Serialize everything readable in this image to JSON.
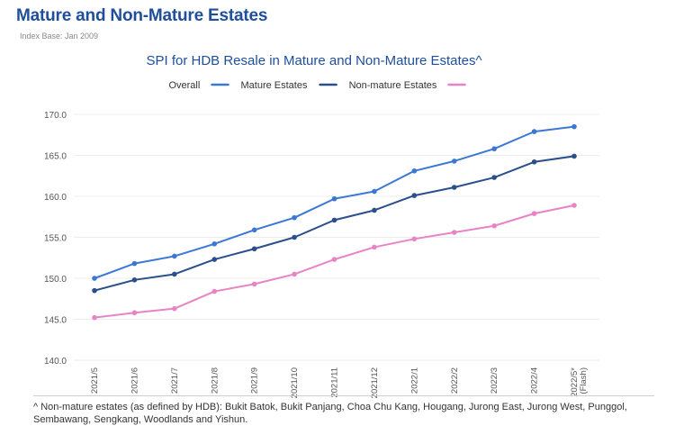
{
  "header": {
    "title": "Mature and Non-Mature Estates",
    "index_base": "Index Base: Jan 2009"
  },
  "footnote": "^ Non-mature estates (as defined by HDB): Bukit Batok, Bukit Panjang, Choa Chu Kang, Hougang, Jurong East, Jurong West, Punggol, Sembawang, Sengkang, Woodlands and Yishun.",
  "colors": {
    "overall": "#3a78d4",
    "mature": "#2b4f8c",
    "non_mature": "#e884c6",
    "grid": "#ececec",
    "title": "#1f4e9b"
  },
  "chart_data": {
    "type": "line",
    "title": "SPI for HDB Resale in Mature and Non-Mature Estates^",
    "xlabel": "",
    "ylabel": "",
    "ylim": [
      140,
      170
    ],
    "yticks": [
      "140.0",
      "145.0",
      "150.0",
      "155.0",
      "160.0",
      "165.0",
      "170.0"
    ],
    "grid": true,
    "legend_position": "top",
    "categories": [
      "2021/5",
      "2021/6",
      "2021/7",
      "2021/8",
      "2021/9",
      "2021/10",
      "2021/11",
      "2021/12",
      "2022/1",
      "2022/2",
      "2022/3",
      "2022/4",
      "2022/5*"
    ],
    "last_category_note": "(Flash)",
    "series": [
      {
        "name": "Overall",
        "color_key": "overall",
        "values": [
          150.0,
          151.8,
          152.7,
          154.2,
          155.9,
          157.4,
          159.7,
          160.6,
          163.1,
          164.3,
          165.8,
          167.9,
          168.5
        ]
      },
      {
        "name": "Mature Estates",
        "color_key": "mature",
        "values": [
          148.5,
          149.8,
          150.5,
          152.3,
          153.6,
          155.0,
          157.1,
          158.3,
          160.1,
          161.1,
          162.3,
          164.2,
          164.9
        ]
      },
      {
        "name": "Non-mature Estates",
        "color_key": "non_mature",
        "values": [
          145.2,
          145.8,
          146.3,
          148.4,
          149.3,
          150.5,
          152.3,
          153.8,
          154.8,
          155.6,
          156.4,
          157.9,
          158.9
        ]
      }
    ]
  }
}
